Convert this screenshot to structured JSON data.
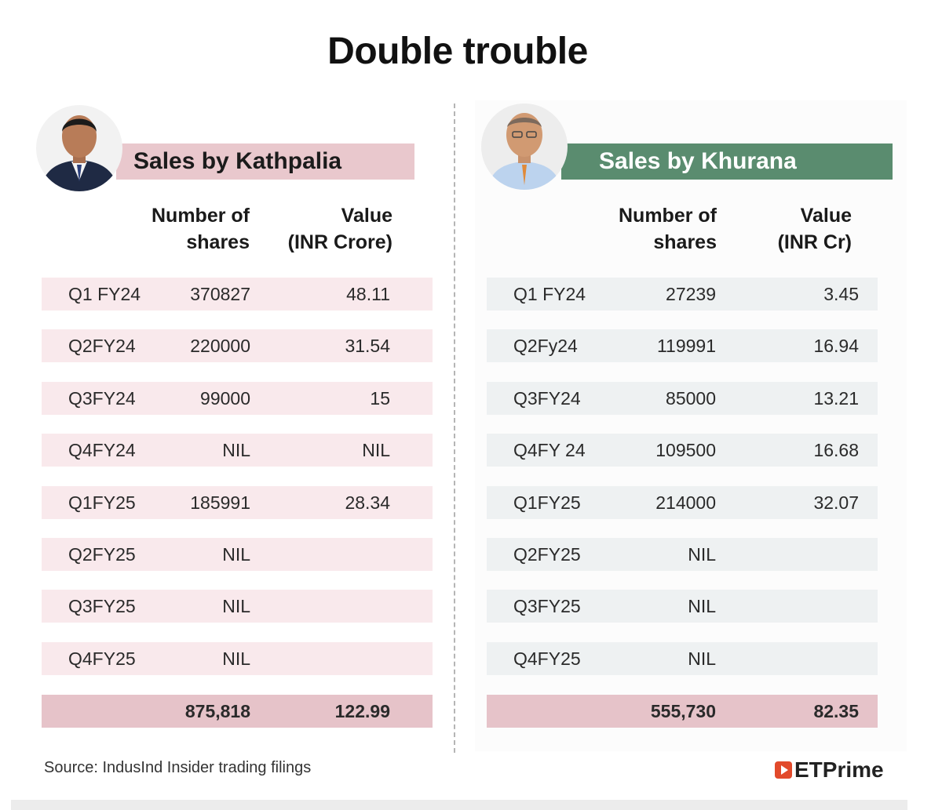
{
  "title": "Double trouble",
  "colors": {
    "pink_banner": "#e9c8cd",
    "green_banner": "#5a8c6f",
    "pink_row": "#f9e9ec",
    "grey_row": "#eef1f2",
    "total_row": "#e6c3c9",
    "brand_red": "#e24a2b"
  },
  "chart_data": [
    {
      "type": "table",
      "title": "Sales by Kathpalia",
      "columns": [
        "",
        "Number of shares",
        "Value (INR Crore)"
      ],
      "col_head_shares": [
        "Number of",
        "shares"
      ],
      "col_head_value": [
        "Value",
        "(INR Crore)"
      ],
      "rows": [
        {
          "quarter": "Q1 FY24",
          "shares": "370827",
          "value": "48.11"
        },
        {
          "quarter": "Q2FY24",
          "shares": "220000",
          "value": "31.54"
        },
        {
          "quarter": "Q3FY24",
          "shares": "99000",
          "value": "15"
        },
        {
          "quarter": "Q4FY24",
          "shares": "NIL",
          "value": "NIL"
        },
        {
          "quarter": "Q1FY25",
          "shares": "185991",
          "value": "28.34"
        },
        {
          "quarter": "Q2FY25",
          "shares": "NIL",
          "value": ""
        },
        {
          "quarter": "Q3FY25",
          "shares": "NIL",
          "value": ""
        },
        {
          "quarter": "Q4FY25",
          "shares": "NIL",
          "value": ""
        }
      ],
      "total": {
        "shares": "875,818",
        "value": "122.99"
      }
    },
    {
      "type": "table",
      "title": "Sales by Khurana",
      "columns": [
        "",
        "Number of shares",
        "Value (INR Cr)"
      ],
      "col_head_shares": [
        "Number of",
        "shares"
      ],
      "col_head_value": [
        "Value",
        "(INR Cr)"
      ],
      "rows": [
        {
          "quarter": "Q1 FY24",
          "shares": "27239",
          "value": "3.45"
        },
        {
          "quarter": "Q2Fy24",
          "shares": "119991",
          "value": "16.94"
        },
        {
          "quarter": "Q3FY24",
          "shares": "85000",
          "value": "13.21"
        },
        {
          "quarter": "Q4FY 24",
          "shares": "109500",
          "value": "16.68"
        },
        {
          "quarter": "Q1FY25",
          "shares": "214000",
          "value": "32.07"
        },
        {
          "quarter": "Q2FY25",
          "shares": "NIL",
          "value": ""
        },
        {
          "quarter": "Q3FY25",
          "shares": "NIL",
          "value": ""
        },
        {
          "quarter": "Q4FY25",
          "shares": "NIL",
          "value": ""
        }
      ],
      "total": {
        "shares": "555,730",
        "value": "82.35"
      }
    }
  ],
  "source": "Source: IndusInd Insider trading filings",
  "brand": "ETPrime"
}
